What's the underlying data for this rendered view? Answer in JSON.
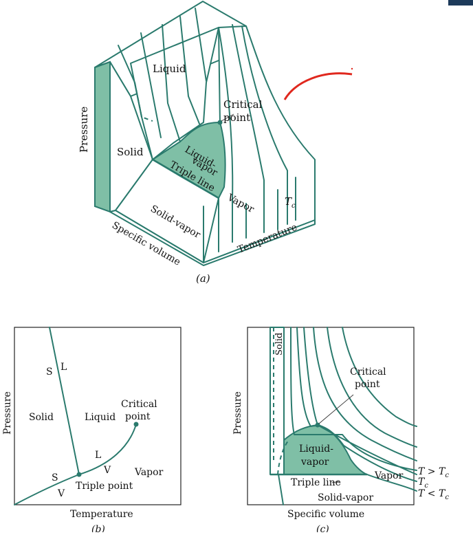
{
  "accent_color": "#2a7a6d",
  "fill_color": "#7fbfa6",
  "corner_tab_color": "#1d3a5a",
  "annotation_color": "#e0281e",
  "figure_a": {
    "caption": "(a)",
    "labels": {
      "pressure": "Pressure",
      "liquid": "Liquid",
      "critical_point_1": "Critical",
      "critical_point_2": "point",
      "solid": "Solid",
      "liquid_vapor_1": "Liquid-",
      "liquid_vapor_2": "vapor",
      "triple_line": "Triple line",
      "vapor": "Vapor",
      "tc": "T",
      "tc_sub": "c",
      "solid_vapor": "Solid-vapor",
      "specific_volume": "Specific volume",
      "temperature": "Temperature"
    }
  },
  "figure_b": {
    "caption": "(b)",
    "labels": {
      "pressure": "Pressure",
      "temperature": "Temperature",
      "s_top": "S",
      "l_top": "L",
      "solid": "Solid",
      "liquid": "Liquid",
      "critical_1": "Critical",
      "critical_2": "point",
      "l_mid": "L",
      "v_mid": "V",
      "vapor": "Vapor",
      "s_low": "S",
      "v_low": "V",
      "triple_point": "Triple point"
    }
  },
  "figure_c": {
    "caption": "(c)",
    "labels": {
      "pressure": "Pressure",
      "specific_volume": "Specific volume",
      "solid": "Solid",
      "critical_1": "Critical",
      "critical_2": "point",
      "liquid_vapor_1": "Liquid-",
      "liquid_vapor_2": "vapor",
      "triple_line": "Triple line",
      "vapor": "Vapor",
      "solid_vapor": "Solid-vapor",
      "t_gt": "T > T",
      "t_gt_sub": "c",
      "t_eq": "T",
      "t_eq_sub": "c",
      "t_lt": "T < T",
      "t_lt_sub": "c"
    }
  }
}
